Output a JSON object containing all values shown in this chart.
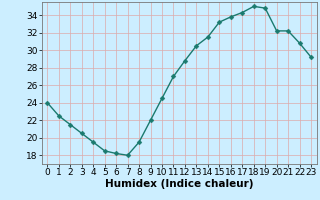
{
  "x": [
    0,
    1,
    2,
    3,
    4,
    5,
    6,
    7,
    8,
    9,
    10,
    11,
    12,
    13,
    14,
    15,
    16,
    17,
    18,
    19,
    20,
    21,
    22,
    23
  ],
  "y": [
    24,
    22.5,
    21.5,
    20.5,
    19.5,
    18.5,
    18.2,
    18.0,
    19.5,
    22.0,
    24.5,
    27.0,
    28.8,
    30.5,
    31.5,
    33.2,
    33.8,
    34.3,
    35.0,
    34.8,
    32.2,
    32.2,
    30.8,
    29.2
  ],
  "xlabel": "Humidex (Indice chaleur)",
  "xlim": [
    -0.5,
    23.5
  ],
  "ylim": [
    17,
    35.5
  ],
  "yticks": [
    18,
    20,
    22,
    24,
    26,
    28,
    30,
    32,
    34
  ],
  "xticks": [
    0,
    1,
    2,
    3,
    4,
    5,
    6,
    7,
    8,
    9,
    10,
    11,
    12,
    13,
    14,
    15,
    16,
    17,
    18,
    19,
    20,
    21,
    22,
    23
  ],
  "line_color": "#1a7a6e",
  "marker": "D",
  "marker_size": 2.5,
  "bg_color": "#cceeff",
  "grid_color": "#ddaaaa",
  "tick_fontsize": 6.5,
  "xlabel_fontsize": 7.5
}
